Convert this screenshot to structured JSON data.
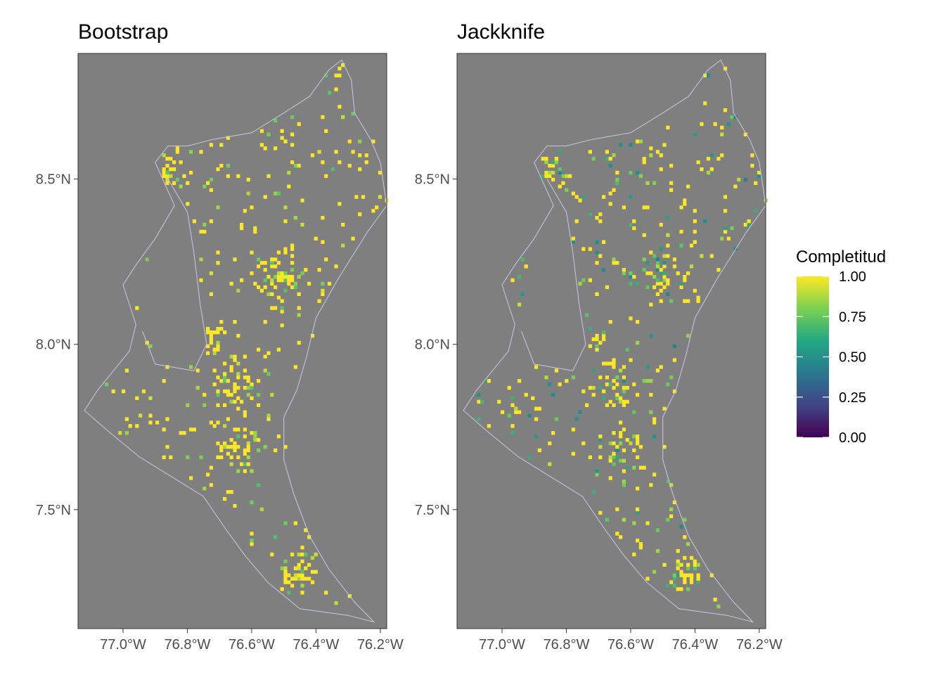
{
  "chart_data": [
    {
      "type": "heatmap",
      "title": "Bootstrap",
      "xlabel": "",
      "ylabel": "",
      "xlim": [
        -77.14,
        -76.18
      ],
      "ylim": [
        7.14,
        8.88
      ],
      "x_ticks": [
        {
          "value": -77.0,
          "label": "77.0°W"
        },
        {
          "value": -76.8,
          "label": "76.8°W"
        },
        {
          "value": -76.6,
          "label": "76.6°W"
        },
        {
          "value": -76.4,
          "label": "76.4°W"
        },
        {
          "value": -76.2,
          "label": "76.2°W"
        }
      ],
      "y_ticks": [
        {
          "value": 7.5,
          "label": "7.5°N"
        },
        {
          "value": 8.0,
          "label": "8.0°N"
        },
        {
          "value": 8.5,
          "label": "8.5°N"
        }
      ],
      "grid": false,
      "cells_approximate": [
        {
          "lon": -76.85,
          "lat": 8.52,
          "value": 0.82
        },
        {
          "lon": -76.72,
          "lat": 8.02,
          "value": 0.78
        },
        {
          "lon": -76.68,
          "lat": 7.92,
          "value": 0.8
        },
        {
          "lon": -76.45,
          "lat": 7.3,
          "value": 0.85
        },
        {
          "lon": -76.55,
          "lat": 8.2,
          "value": 1.0
        },
        {
          "lon": -76.9,
          "lat": 7.6,
          "value": 1.0
        }
      ]
    },
    {
      "type": "heatmap",
      "title": "Jackknife",
      "xlabel": "",
      "ylabel": "",
      "xlim": [
        -77.14,
        -76.18
      ],
      "ylim": [
        7.14,
        8.88
      ],
      "x_ticks": [
        {
          "value": -77.0,
          "label": "77.0°W"
        },
        {
          "value": -76.8,
          "label": "76.8°W"
        },
        {
          "value": -76.6,
          "label": "76.6°W"
        },
        {
          "value": -76.4,
          "label": "76.4°W"
        },
        {
          "value": -76.2,
          "label": "76.2°W"
        }
      ],
      "y_ticks": [
        {
          "value": 7.5,
          "label": "7.5°N"
        },
        {
          "value": 8.0,
          "label": "8.0°N"
        },
        {
          "value": 8.5,
          "label": "8.5°N"
        }
      ],
      "grid": false,
      "cells_approximate": [
        {
          "lon": -76.85,
          "lat": 8.52,
          "value": 0.55
        },
        {
          "lon": -76.72,
          "lat": 8.02,
          "value": 0.6
        },
        {
          "lon": -76.68,
          "lat": 7.92,
          "value": 0.62
        },
        {
          "lon": -76.45,
          "lat": 7.3,
          "value": 0.58
        },
        {
          "lon": -76.55,
          "lat": 8.2,
          "value": 1.0
        },
        {
          "lon": -76.9,
          "lat": 7.6,
          "value": 1.0
        }
      ]
    }
  ],
  "legend": {
    "title": "Completitud",
    "labels": [
      "1.00",
      "0.75",
      "0.50",
      "0.25",
      "0.00"
    ],
    "colormap": "viridis",
    "colors": [
      "#fde725",
      "#7ad151",
      "#22a884",
      "#2a788e",
      "#414487",
      "#440154"
    ],
    "placement": "right"
  },
  "panel_background": "#7f7f7f",
  "outline_color": "#c8c8e6"
}
